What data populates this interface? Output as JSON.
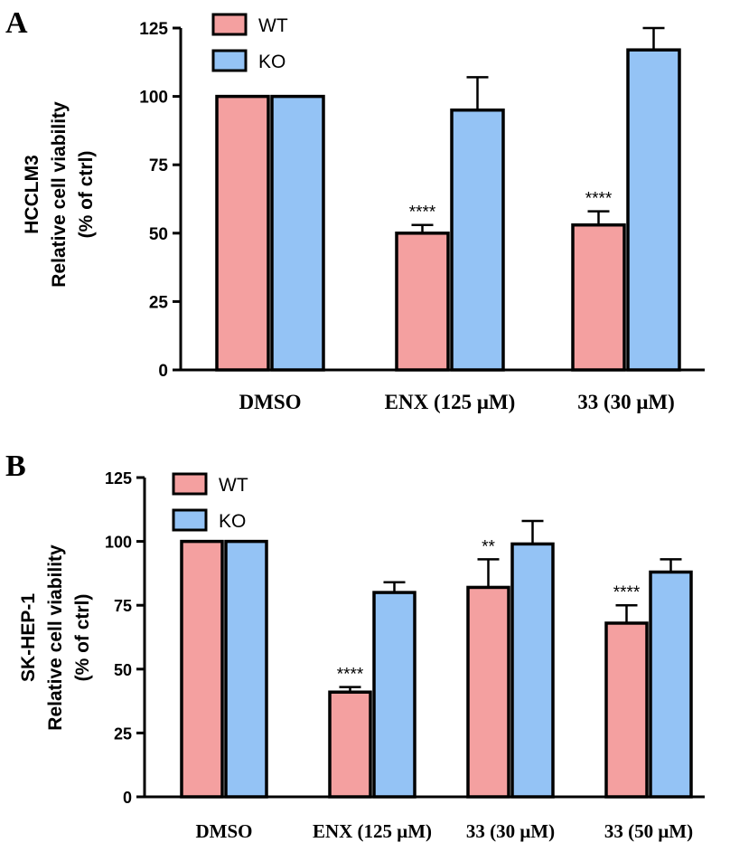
{
  "chart_data": [
    {
      "panel": "A",
      "type": "bar",
      "ylabel_lines": [
        "HCCLM3",
        "Relative cell viability",
        "(% of ctrl)"
      ],
      "ylim": [
        0,
        125
      ],
      "yticks": [
        0,
        25,
        50,
        75,
        100,
        125
      ],
      "categories": [
        "DMSO",
        "ENX (125 μM)",
        "33 (30 μM)"
      ],
      "series": [
        {
          "name": "WT",
          "color": "#f4a0a0",
          "values": [
            100,
            50,
            53
          ],
          "errors": [
            0,
            3,
            5
          ]
        },
        {
          "name": "KO",
          "color": "#94c3f5",
          "values": [
            100,
            95,
            117
          ],
          "errors": [
            0,
            12,
            8
          ]
        }
      ],
      "significance": [
        "",
        "****",
        "****"
      ],
      "grid": false,
      "legend_position": "top-left"
    },
    {
      "panel": "B",
      "type": "bar",
      "ylabel_lines": [
        "SK-HEP-1",
        "Relative cell viability",
        "(% of ctrl)"
      ],
      "ylim": [
        0,
        125
      ],
      "yticks": [
        0,
        25,
        50,
        75,
        100,
        125
      ],
      "categories": [
        "DMSO",
        "ENX (125 μM)",
        "33 (30 μM)",
        "33 (50 μM)"
      ],
      "series": [
        {
          "name": "WT",
          "color": "#f4a0a0",
          "values": [
            100,
            41,
            82,
            68
          ],
          "errors": [
            0,
            2,
            11,
            7
          ]
        },
        {
          "name": "KO",
          "color": "#94c3f5",
          "values": [
            100,
            80,
            99,
            88
          ],
          "errors": [
            0,
            4,
            9,
            5
          ]
        }
      ],
      "significance": [
        "",
        "****",
        "**",
        "****"
      ],
      "grid": false,
      "legend_position": "top-left"
    }
  ]
}
